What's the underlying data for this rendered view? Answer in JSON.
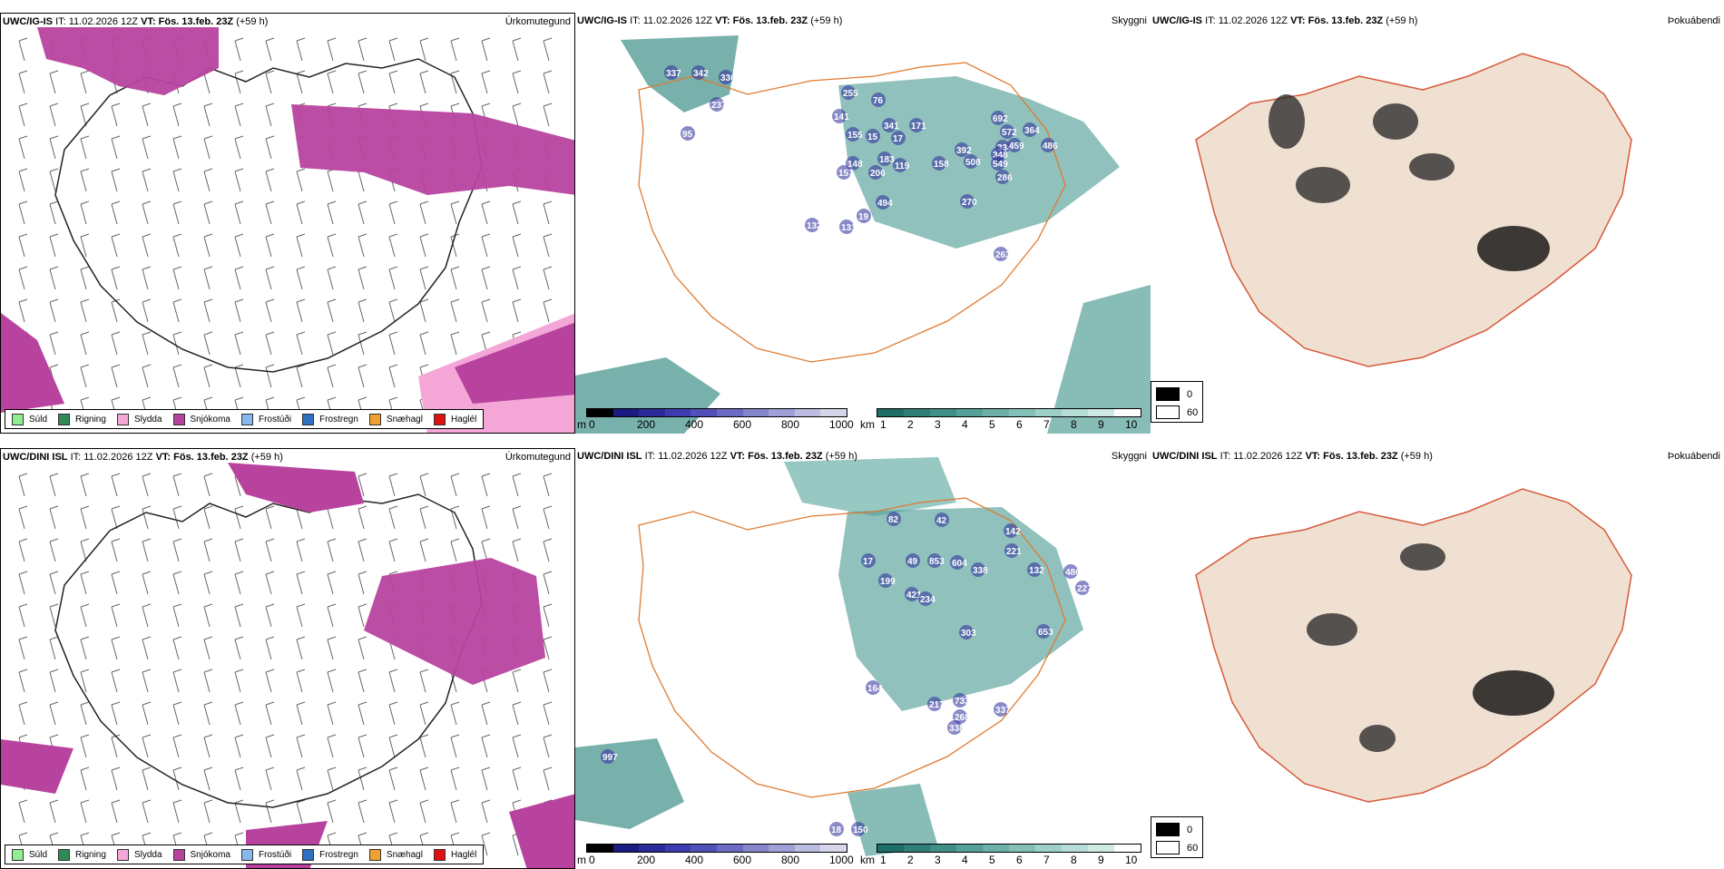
{
  "rows": [
    {
      "model": "UWC/IG-IS",
      "it_label": "IT:",
      "it_value": "11.02.2026 12Z",
      "vt_label": "VT:",
      "vt_value": "Fös. 13.feb. 23Z",
      "lead": "(+59 h)",
      "cloud_numbers": [
        "337",
        "342",
        "336",
        "237",
        "95",
        "255",
        "76",
        "141",
        "341",
        "155",
        "15",
        "171",
        "17",
        "148",
        "183",
        "119",
        "157",
        "206",
        "692",
        "572",
        "364",
        "334",
        "459",
        "392",
        "348",
        "486",
        "158",
        "508",
        "549",
        "286",
        "270",
        "494",
        "132",
        "131",
        "19",
        "263"
      ]
    },
    {
      "model": "UWC/DINI ISL",
      "it_label": "IT:",
      "it_value": "11.02.2026 12Z",
      "vt_label": "VT:",
      "vt_value": "Fös. 13.feb. 23Z",
      "lead": "(+59 h)",
      "cloud_numbers": [
        "82",
        "42",
        "142",
        "221",
        "17",
        "49",
        "853",
        "604",
        "338",
        "132",
        "486",
        "227",
        "199",
        "421",
        "234",
        "303",
        "653",
        "164",
        "217",
        "733",
        "268",
        "337",
        "338",
        "997",
        "18",
        "150"
      ]
    }
  ],
  "panel_titles": {
    "precip": "Úrkomutegund",
    "visibility": "Skyggni",
    "fog": "Þokuábendi"
  },
  "precip_legend": [
    {
      "label": "Súld",
      "color": "#90ee90"
    },
    {
      "label": "Rigning",
      "color": "#2e8b57"
    },
    {
      "label": "Slydda",
      "color": "#f4a6d7"
    },
    {
      "label": "Snjókoma",
      "color": "#b8439f"
    },
    {
      "label": "Frostúði",
      "color": "#87b7ee"
    },
    {
      "label": "Frostregn",
      "color": "#2f6fbf"
    },
    {
      "label": "Snæhagl",
      "color": "#f0a030"
    },
    {
      "label": "Haglél",
      "color": "#e01010"
    }
  ],
  "ceiling_bar": {
    "unit": "m",
    "ticks": [
      "0",
      "200",
      "400",
      "600",
      "800",
      "1000"
    ],
    "colors": [
      "#000000",
      "#1a1a80",
      "#2a2a9a",
      "#3c3cb0",
      "#5050b8",
      "#6b6bc4",
      "#8585cc",
      "#a0a0d6",
      "#bcbce0",
      "#d6d6ea"
    ]
  },
  "vis_bar": {
    "unit": "km",
    "ticks": [
      "1",
      "2",
      "3",
      "4",
      "5",
      "6",
      "7",
      "8",
      "9",
      "10"
    ],
    "colors": [
      "#1e6e68",
      "#2f7f78",
      "#3f8f88",
      "#55a098",
      "#6cb0a8",
      "#84c0b8",
      "#9dd0c8",
      "#b6ddd6",
      "#cfe9e4",
      "#ffffff"
    ]
  },
  "fog_legend": [
    {
      "label": "0",
      "color": "#000000"
    },
    {
      "label": "60",
      "color": "#ffffff"
    }
  ]
}
